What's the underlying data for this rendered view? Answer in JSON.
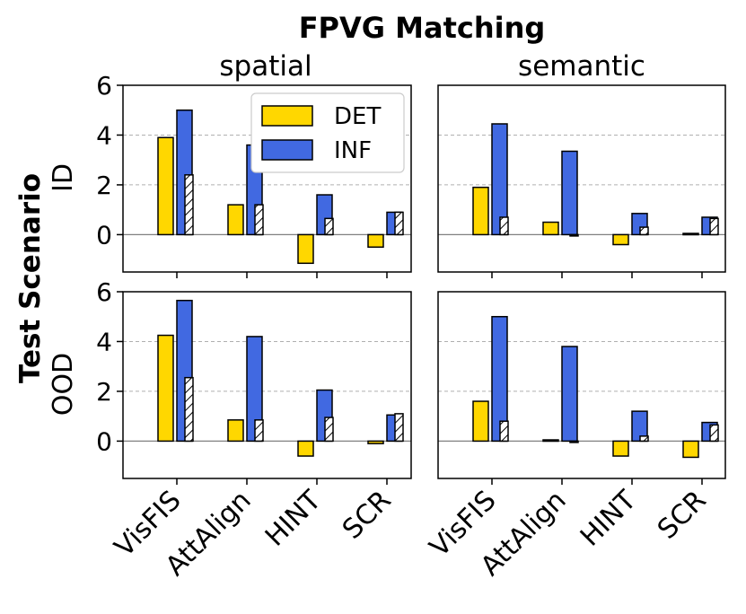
{
  "chart_data": {
    "type": "bar",
    "title": "FPVG Matching",
    "ylabel": "Test Scenario",
    "columns": [
      "spatial",
      "semantic"
    ],
    "rows": [
      "ID",
      "OOD"
    ],
    "categories": [
      "VisFIS",
      "AttAlign",
      "HINT",
      "SCR"
    ],
    "yticks": [
      0,
      2,
      4,
      6
    ],
    "ylim": [
      -1.5,
      6
    ],
    "legend": {
      "position": "upper-right",
      "entries": [
        "DET",
        "INF"
      ]
    },
    "colors": {
      "DET": "#FFD700",
      "INF": "#4169E1",
      "hatched": "#ffffff"
    },
    "panels": [
      {
        "row": "ID",
        "column": "spatial",
        "series": [
          {
            "name": "DET",
            "values": [
              3.9,
              1.2,
              -1.15,
              -0.5
            ]
          },
          {
            "name": "INF",
            "values": [
              5.0,
              3.6,
              1.6,
              0.9
            ]
          },
          {
            "name": "INF (hatched)",
            "values": [
              2.4,
              1.2,
              0.65,
              0.9
            ]
          }
        ]
      },
      {
        "row": "ID",
        "column": "semantic",
        "series": [
          {
            "name": "DET",
            "values": [
              1.9,
              0.5,
              -0.4,
              0.05
            ]
          },
          {
            "name": "INF",
            "values": [
              4.45,
              3.35,
              0.85,
              0.7
            ]
          },
          {
            "name": "INF (hatched)",
            "values": [
              0.7,
              -0.05,
              0.3,
              0.65
            ]
          }
        ]
      },
      {
        "row": "OOD",
        "column": "spatial",
        "series": [
          {
            "name": "DET",
            "values": [
              4.25,
              0.85,
              -0.6,
              -0.1
            ]
          },
          {
            "name": "INF",
            "values": [
              5.65,
              4.2,
              2.05,
              1.05
            ]
          },
          {
            "name": "INF (hatched)",
            "values": [
              2.55,
              0.85,
              0.95,
              1.1
            ]
          }
        ]
      },
      {
        "row": "OOD",
        "column": "semantic",
        "series": [
          {
            "name": "DET",
            "values": [
              1.6,
              0.05,
              -0.6,
              -0.65
            ]
          },
          {
            "name": "INF",
            "values": [
              5.0,
              3.8,
              1.2,
              0.75
            ]
          },
          {
            "name": "INF (hatched)",
            "values": [
              0.8,
              0.0,
              0.2,
              0.65
            ]
          }
        ]
      }
    ]
  }
}
